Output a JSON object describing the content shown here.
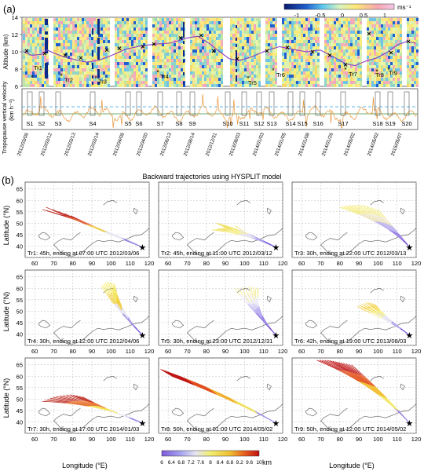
{
  "figure": {
    "panel_a_label": "(a)",
    "panel_b_label": "(b)",
    "colorbar_a": {
      "ticks": [
        "-1",
        "-0.5",
        "0",
        "0.5",
        "1"
      ],
      "unit": "ms⁻¹"
    },
    "top_panel": {
      "ylabel": "Altitude (km)",
      "yticks": [
        "6",
        "8",
        "10",
        "12",
        "14"
      ],
      "ylim": [
        6,
        14
      ],
      "trajectory_markers": [
        "Tr1",
        "Tr2",
        "Tr3",
        "Tr4",
        "Tr5",
        "Tr6",
        "Tr7",
        "Tr8",
        "Tr9"
      ]
    },
    "mid_panel": {
      "ylabel_line1": "Tropopause vertical velocity",
      "ylabel_line2": "(km h⁻¹)",
      "segments": [
        "S1",
        "S2",
        "S3",
        "S4",
        "S5",
        "S6",
        "S7",
        "S8",
        "S9",
        "S10",
        "S11",
        "S12",
        "S13",
        "S14",
        "S15",
        "S16",
        "S17",
        "S18",
        "S19",
        "S20"
      ],
      "date_ticks": [
        "2012/03/06",
        "2012/03/12",
        "2012/03/13",
        "2012/03/14",
        "2012/04/06",
        "2012/04/20",
        "2012/06/13",
        "2012/08/14",
        "2012/12/31",
        "2013/08/03",
        "2014/01/03",
        "2014/01/05",
        "2014/01/08",
        "2014/01/26",
        "2014/05/02",
        "2014/05/02",
        "2015/05/07"
      ]
    },
    "panel_b_title": "Backward trajectories using HYSPLIT model",
    "xlabel": "Longitude (°E)",
    "ylabel": "Latitude (°N)",
    "xticks": [
      "60",
      "70",
      "80",
      "90",
      "100",
      "110",
      "120"
    ],
    "yticks": [
      "35",
      "40",
      "45",
      "50",
      "55",
      "60",
      "65"
    ],
    "maps": [
      {
        "caption": "Tr1: 45h, ending at 07:00 UTC 2012/03/06"
      },
      {
        "caption": "Tr2: 45h, ending at 11:00 UTC 2012/03/12"
      },
      {
        "caption": "Tr3: 30h, ending at 22:00 UTC 2012/03/13"
      },
      {
        "caption": "Tr4: 30h, ending at 12:00 UTC 2012/04/06"
      },
      {
        "caption": "Tr5: 30h, ending at 23:00 UTC 2012/12/31"
      },
      {
        "caption": "Tr6: 42h, ending at 19:00 UTC 2013/08/03"
      },
      {
        "caption": "Tr7: 30h, ending at 17:00 UTC 2014/01/03"
      },
      {
        "caption": "Tr8: 50h, ending at 01:00 UTC 2014/05/02"
      },
      {
        "caption": "Tr9: 50h, ending at 12:00 UTC 2014/05/02"
      }
    ],
    "colorbar_b": {
      "ticks": [
        "6",
        "6.4",
        "6.8",
        "7.2",
        "7.6",
        "8",
        "8.4",
        "8.8",
        "9.2",
        "9.6",
        "10"
      ],
      "unit": "km"
    }
  }
}
